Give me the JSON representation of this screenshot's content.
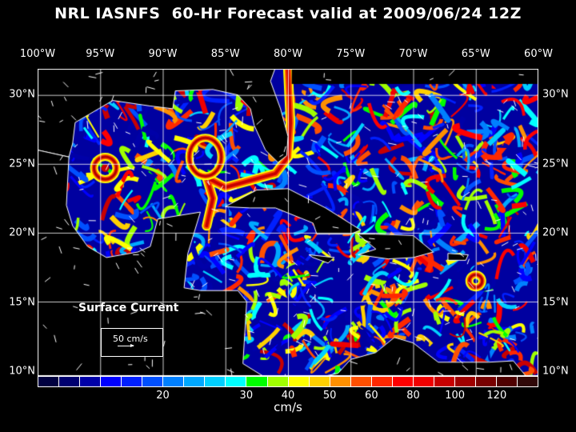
{
  "title": "NRL IASNFS  60-Hr Forecast valid at 2009/06/24 12Z",
  "lon_labels": [
    "100°W",
    "95°W",
    "90°W",
    "85°W",
    "80°W",
    "75°W",
    "70°W",
    "65°W",
    "60°W"
  ],
  "lat_labels": [
    "30°N",
    "25°N",
    "20°N",
    "15°N",
    "10°N"
  ],
  "map_label": "Surface Current",
  "legend": {
    "text": "50 cm/s",
    "vector_speed": 50
  },
  "colorbar": {
    "colors": [
      "#000040",
      "#000070",
      "#0000a8",
      "#0000ff",
      "#0020ff",
      "#0050ff",
      "#0080ff",
      "#00a8ff",
      "#00d0ff",
      "#00ffff",
      "#00ff00",
      "#a0ff00",
      "#ffff00",
      "#ffd000",
      "#ff9000",
      "#ff5000",
      "#ff2800",
      "#ff0000",
      "#f00000",
      "#c80000",
      "#a00000",
      "#780000",
      "#500000",
      "#300808"
    ],
    "tick_labels": [
      {
        "label": "20",
        "index": 6
      },
      {
        "label": "30",
        "index": 10
      },
      {
        "label": "40",
        "index": 12
      },
      {
        "label": "50",
        "index": 14
      },
      {
        "label": "60",
        "index": 16
      },
      {
        "label": "80",
        "index": 18
      },
      {
        "label": "100",
        "index": 20
      },
      {
        "label": "120",
        "index": 22
      }
    ],
    "units": "cm/s"
  },
  "map_extent": {
    "lon": [
      -100,
      -60
    ],
    "lat": [
      9.6,
      31.9
    ]
  }
}
